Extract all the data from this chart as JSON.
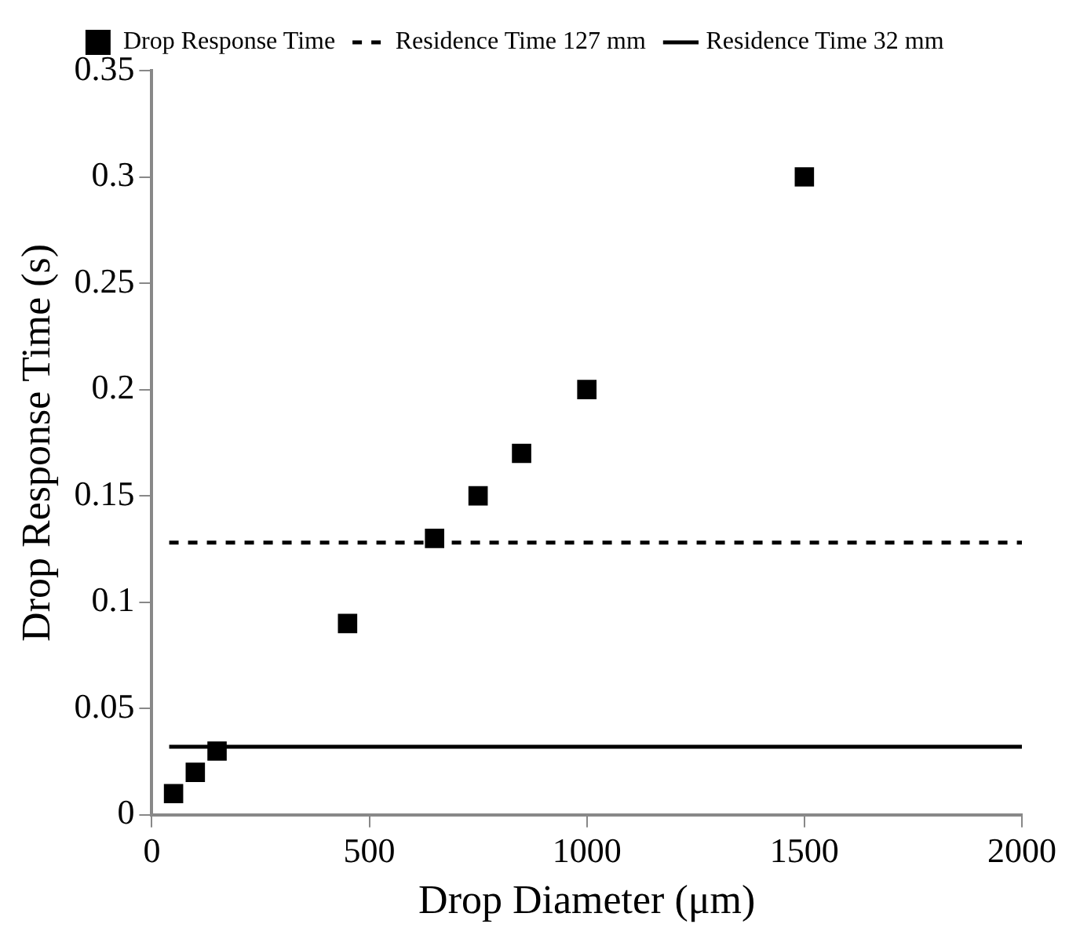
{
  "chart_data": {
    "type": "scatter",
    "xlabel": "Drop Diameter (μm)",
    "ylabel": "Drop Response Time (s)",
    "xlim": [
      0,
      2000
    ],
    "xticks": [
      0,
      500,
      1000,
      1500,
      2000
    ],
    "ylim": [
      0,
      0.35
    ],
    "yticks": [
      0,
      0.05,
      0.1,
      0.15,
      0.2,
      0.25,
      0.3,
      0.35
    ],
    "grid": false,
    "legend": "top",
    "marker": "square",
    "series": [
      {
        "name": "Drop Response Time",
        "color": "#000000",
        "x": [
          50,
          100,
          150,
          450,
          650,
          750,
          850,
          1000,
          1500
        ],
        "values": [
          0.01,
          0.02,
          0.03,
          0.09,
          0.13,
          0.15,
          0.17,
          0.2,
          0.3
        ]
      },
      {
        "name": "Residence Time 127 mm",
        "type": "line",
        "line_style": "dashed",
        "marker": "none",
        "color": "#000000",
        "x": [
          40,
          2000
        ],
        "values": [
          0.128,
          0.128
        ]
      },
      {
        "name": "Residence Time 32 mm",
        "type": "line",
        "line_style": "solid",
        "marker": "none",
        "color": "#000000",
        "x": [
          40,
          2000
        ],
        "values": [
          0.032,
          0.032
        ]
      }
    ]
  }
}
